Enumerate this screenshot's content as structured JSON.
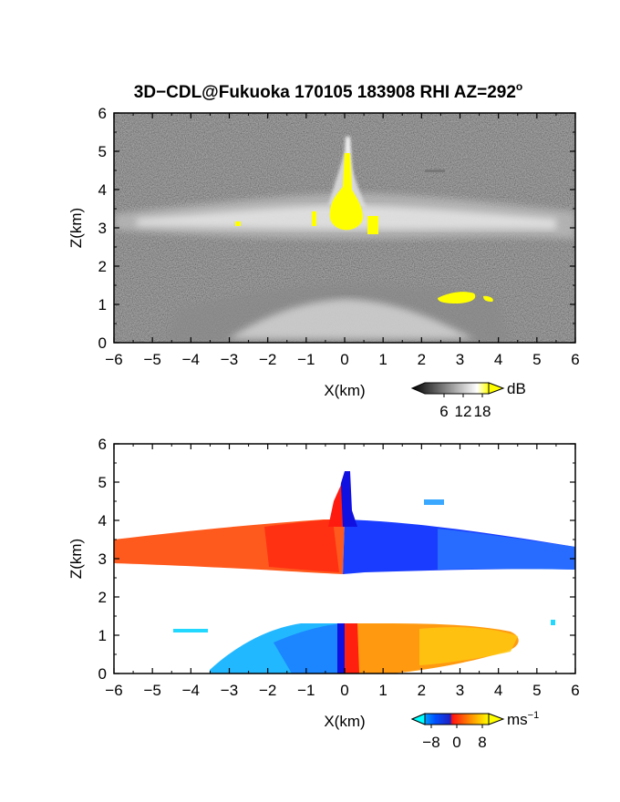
{
  "title": "3D−CDL@Fukuoka 170105 183908 RHI AZ=292",
  "title_sup": "o",
  "chart_data": [
    {
      "type": "heatmap",
      "panel": "reflectivity",
      "xlabel": "X(km)",
      "ylabel": "Z(km)",
      "xlim": [
        -6,
        6
      ],
      "ylim": [
        0,
        6
      ],
      "xticks": [
        "−6",
        "−5",
        "−4",
        "−3",
        "−2",
        "−1",
        "0",
        "1",
        "2",
        "3",
        "4",
        "5",
        "6"
      ],
      "yticks": [
        "0",
        "1",
        "2",
        "3",
        "4",
        "5",
        "6"
      ],
      "colorbar": {
        "unit": "dB",
        "ticks": [
          "6",
          "12",
          "18"
        ],
        "tick_values": [
          6,
          12,
          18
        ],
        "range": [
          0,
          20
        ],
        "colors": [
          "#000000",
          "#ffffff",
          "#ffff00"
        ]
      },
      "layers": [
        {
          "feature": "cloud layer",
          "x_range": [
            -6,
            6
          ],
          "z_range": [
            2.7,
            3.6
          ]
        },
        {
          "feature": "vertical plume",
          "x_range": [
            -0.3,
            0.3
          ],
          "z_range": [
            3.0,
            5.4
          ]
        },
        {
          "feature": "near-surface fan",
          "x_range": [
            -4,
            4.5
          ],
          "z_range": [
            0,
            1.4
          ]
        },
        {
          "feature": "strong echo (yellow) core",
          "x": 0.1,
          "z": 3.4,
          "value": 18
        },
        {
          "feature": "strong echo (yellow) low",
          "x_range": [
            2.4,
            3.9
          ],
          "z": 1.2,
          "value": 18
        }
      ],
      "grid": false
    },
    {
      "type": "heatmap",
      "panel": "doppler_velocity",
      "xlabel": "X(km)",
      "ylabel": "Z(km)",
      "xlim": [
        -6,
        6
      ],
      "ylim": [
        0,
        6
      ],
      "xticks": [
        "−6",
        "−5",
        "−4",
        "−3",
        "−2",
        "−1",
        "0",
        "1",
        "2",
        "3",
        "4",
        "5",
        "6"
      ],
      "yticks": [
        "0",
        "1",
        "2",
        "3",
        "4",
        "5",
        "6"
      ],
      "colorbar": {
        "unit": "ms",
        "unit_sup": "−1",
        "ticks": [
          "−8",
          "0",
          "8"
        ],
        "tick_values": [
          -8,
          0,
          8
        ],
        "range": [
          -10,
          10
        ],
        "colors": [
          "#00ffff",
          "#0000ff",
          "#ff0000",
          "#ffff00"
        ]
      },
      "layers": [
        {
          "feature": "cloud layer left (positive)",
          "x_range": [
            -6,
            0
          ],
          "z_range": [
            2.8,
            3.8
          ],
          "value": 6
        },
        {
          "feature": "cloud layer right (negative)",
          "x_range": [
            0,
            6
          ],
          "z_range": [
            2.7,
            3.7
          ],
          "value": -5
        },
        {
          "feature": "plume",
          "x_range": [
            -0.3,
            0.3
          ],
          "z_range": [
            3.0,
            5.3
          ]
        },
        {
          "feature": "lower layer left (negative)",
          "x_range": [
            -4.5,
            0
          ],
          "z_range": [
            0,
            1.3
          ],
          "value": -8
        },
        {
          "feature": "lower layer right (positive)",
          "x_range": [
            0,
            4.7
          ],
          "z_range": [
            0,
            1.3
          ],
          "value": 7
        }
      ],
      "grid": false
    }
  ]
}
